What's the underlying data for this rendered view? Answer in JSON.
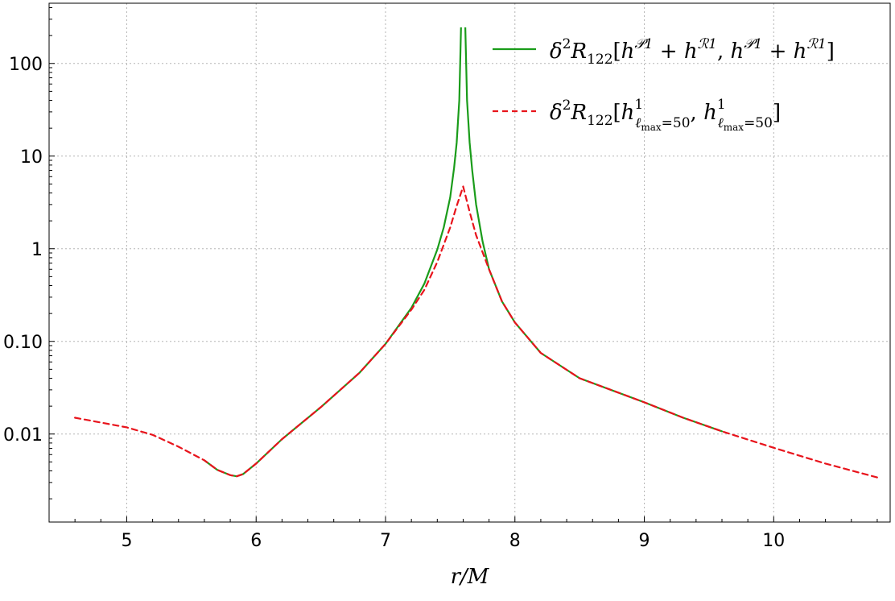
{
  "chart_data": {
    "type": "line",
    "title": "",
    "xlabel": "r/M",
    "ylabel": "",
    "xlim": [
      4.4,
      10.9
    ],
    "ylim_log10": [
      -2.95,
      2.65
    ],
    "yscale": "log",
    "grid": true,
    "grid_style": "dotted",
    "legend_position": "top-right",
    "x_ticks": [
      5,
      6,
      7,
      8,
      9,
      10
    ],
    "x_tick_labels": [
      "5",
      "6",
      "7",
      "8",
      "9",
      "10"
    ],
    "y_ticks": [
      0.01,
      0.1,
      1,
      10,
      100
    ],
    "y_tick_labels": [
      "0.01",
      "0.10",
      "1",
      "10",
      "100"
    ],
    "series": [
      {
        "name": "δ²R₁₂₂[h^{𝒫1} + h^{ℛ1}, h^{𝒫1} + h^{ℛ1}]",
        "legend_parts": {
          "delta": "δ",
          "delta_sup": "2",
          "R": "R",
          "R_sub": "122",
          "body_open": "[",
          "h": "h",
          "sup_P": "𝒫1",
          "plus": " + ",
          "sup_R": "ℛ1",
          "comma": ", ",
          "body_close": "]"
        },
        "color": "#1a9c1a",
        "style": "solid",
        "x": [
          5.6,
          5.7,
          5.8,
          5.85,
          5.9,
          6.0,
          6.2,
          6.5,
          6.8,
          7.0,
          7.2,
          7.3,
          7.4,
          7.45,
          7.5,
          7.53,
          7.55,
          7.57,
          7.585,
          7.595,
          7.605,
          7.615,
          7.63,
          7.65,
          7.67,
          7.7,
          7.75,
          7.8,
          7.9,
          8.0,
          8.2,
          8.5,
          9.0,
          9.3,
          9.6
        ],
        "y": [
          0.0052,
          0.0041,
          0.0036,
          0.0035,
          0.0037,
          0.0048,
          0.0088,
          0.0195,
          0.046,
          0.094,
          0.23,
          0.42,
          0.98,
          1.7,
          3.6,
          7.5,
          14.0,
          40.0,
          300.0,
          400.0,
          400.0,
          300.0,
          40.0,
          14.0,
          7.0,
          3.0,
          1.2,
          0.6,
          0.27,
          0.16,
          0.075,
          0.04,
          0.022,
          0.015,
          0.0107
        ]
      },
      {
        "name": "δ²R₁₂₂[h¹_{ℓmax=50}, h¹_{ℓmax=50}]",
        "legend_parts": {
          "delta": "δ",
          "delta_sup": "2",
          "R": "R",
          "R_sub": "122",
          "body_open": "[",
          "h": "h",
          "h_sup": "1",
          "h_sub_l": "ℓ",
          "h_sub_max": "max",
          "h_sub_eq": "=50",
          "comma": ", ",
          "body_close": "]"
        },
        "color": "#e8141c",
        "style": "dashed",
        "x": [
          4.6,
          5.0,
          5.2,
          5.4,
          5.6,
          5.7,
          5.8,
          5.85,
          5.9,
          6.0,
          6.2,
          6.5,
          6.8,
          7.0,
          7.2,
          7.3,
          7.4,
          7.5,
          7.55,
          7.6,
          7.65,
          7.7,
          7.8,
          7.9,
          8.0,
          8.2,
          8.5,
          9.0,
          9.3,
          9.6,
          10.0,
          10.4,
          10.8
        ],
        "y": [
          0.015,
          0.0118,
          0.0098,
          0.0073,
          0.0052,
          0.0041,
          0.0036,
          0.0035,
          0.0037,
          0.0048,
          0.0088,
          0.0195,
          0.046,
          0.094,
          0.22,
          0.36,
          0.72,
          1.7,
          2.9,
          4.7,
          2.5,
          1.4,
          0.6,
          0.27,
          0.16,
          0.075,
          0.04,
          0.022,
          0.015,
          0.0107,
          0.0071,
          0.0048,
          0.0034
        ]
      }
    ]
  }
}
